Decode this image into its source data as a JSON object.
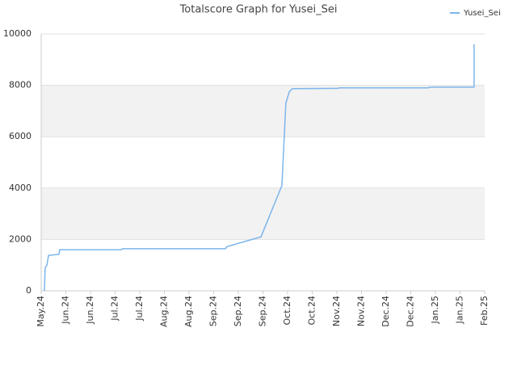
{
  "chart_data": {
    "type": "line",
    "title": "Totalscore Graph for Yusei_Sei",
    "xlim": [
      0,
      18
    ],
    "xticks": [
      {
        "value": 0,
        "label": "May.24"
      },
      {
        "value": 1,
        "label": "Jun.24"
      },
      {
        "value": 2,
        "label": "Jun.24"
      },
      {
        "value": 3,
        "label": "Jul.24"
      },
      {
        "value": 4,
        "label": "Jul.24"
      },
      {
        "value": 5,
        "label": "Aug.24"
      },
      {
        "value": 6,
        "label": "Aug.24"
      },
      {
        "value": 7,
        "label": "Sep.24"
      },
      {
        "value": 8,
        "label": "Sep.24"
      },
      {
        "value": 9,
        "label": "Sep.24"
      },
      {
        "value": 10,
        "label": "Oct.24"
      },
      {
        "value": 11,
        "label": "Oct.24"
      },
      {
        "value": 12,
        "label": "Nov.24"
      },
      {
        "value": 13,
        "label": "Nov.24"
      },
      {
        "value": 14,
        "label": "Dec.24"
      },
      {
        "value": 15,
        "label": "Dec.24"
      },
      {
        "value": 16,
        "label": "Jan.25"
      },
      {
        "value": 17,
        "label": "Jan.25"
      },
      {
        "value": 18,
        "label": "Feb.25"
      }
    ],
    "ylim": [
      0,
      10000
    ],
    "yticks": [
      0,
      2000,
      4000,
      6000,
      8000,
      10000
    ],
    "alternate_bands": true,
    "legend": "top-right",
    "series": [
      {
        "name": "Yusei_Sei",
        "color": "#7cb5ec",
        "x": [
          0.13,
          0.16,
          0.23,
          0.3,
          0.72,
          0.75,
          3.25,
          3.3,
          7.48,
          7.54,
          8.92,
          9.77,
          9.93,
          10.07,
          10.2,
          12.03,
          12.1,
          15.7,
          15.77,
          17.57,
          17.57
        ],
        "values": [
          0,
          900,
          1000,
          1380,
          1420,
          1600,
          1600,
          1640,
          1640,
          1720,
          2100,
          4100,
          7300,
          7750,
          7870,
          7880,
          7900,
          7900,
          7930,
          7930,
          9600
        ]
      }
    ]
  }
}
